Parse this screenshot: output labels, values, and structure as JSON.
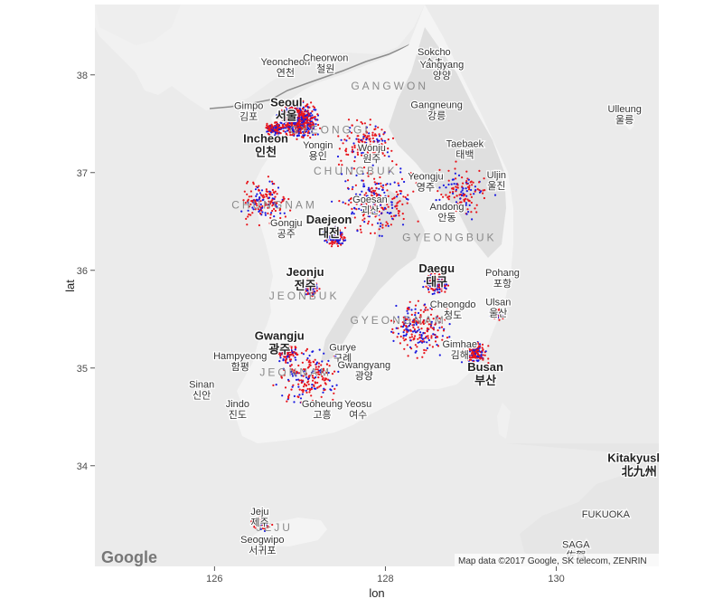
{
  "map": {
    "attribution": "Map data ©2017 Google, SK telecom, ZENRIN",
    "provider_logo": "Google",
    "colors": {
      "panel_bg": "#ebebeb",
      "sea": "#e3e3e3",
      "land": "#f4f4f4",
      "land_dark": "#d7d7d7",
      "point_red": "#e8141b",
      "point_blue": "#1a1adf",
      "border": "#8c8c8c"
    },
    "x_axis": {
      "title": "lon",
      "ticks": [
        {
          "value": 126,
          "label": "126"
        },
        {
          "value": 128,
          "label": "128"
        },
        {
          "value": 130,
          "label": "130"
        }
      ],
      "range": [
        124.6,
        131.2
      ]
    },
    "y_axis": {
      "title": "lat",
      "ticks": [
        {
          "value": 34,
          "label": "34"
        },
        {
          "value": 35,
          "label": "35"
        },
        {
          "value": 36,
          "label": "36"
        },
        {
          "value": 37,
          "label": "37"
        },
        {
          "value": 38,
          "label": "38"
        }
      ],
      "range": [
        32.97,
        38.72
      ]
    },
    "places": [
      {
        "name": "Yeoncheon",
        "local": "연천",
        "lon": 126.83,
        "lat": 38.1
      },
      {
        "name": "Cheorwon",
        "local": "철원",
        "lon": 127.3,
        "lat": 38.14
      },
      {
        "name": "Sokcho",
        "local": "속초",
        "lon": 128.57,
        "lat": 38.2
      },
      {
        "name": "Yangyang",
        "local": "양양",
        "lon": 128.66,
        "lat": 38.07
      },
      {
        "name": "Gimpo",
        "local": "김포",
        "lon": 126.4,
        "lat": 37.65
      },
      {
        "name": "Seoul",
        "local": "서울",
        "lon": 126.84,
        "lat": 37.68,
        "major": true
      },
      {
        "name": "Gangneung",
        "local": "강릉",
        "lon": 128.6,
        "lat": 37.66
      },
      {
        "name": "Ulleung",
        "local": "울릉",
        "lon": 130.8,
        "lat": 37.62
      },
      {
        "name": "Incheon",
        "local": "인천",
        "lon": 126.6,
        "lat": 37.31,
        "major": true
      },
      {
        "name": "Yongin",
        "local": "용인",
        "lon": 127.21,
        "lat": 37.25
      },
      {
        "name": "Wonju",
        "local": "원주",
        "lon": 127.84,
        "lat": 37.22
      },
      {
        "name": "Taebaek",
        "local": "태백",
        "lon": 128.93,
        "lat": 37.26
      },
      {
        "name": "Yeongju",
        "local": "영주",
        "lon": 128.47,
        "lat": 36.93
      },
      {
        "name": "Uljin",
        "local": "울진",
        "lon": 129.3,
        "lat": 36.94
      },
      {
        "name": "Goesan",
        "local": "괴산",
        "lon": 127.82,
        "lat": 36.69
      },
      {
        "name": "Andong",
        "local": "안동",
        "lon": 128.72,
        "lat": 36.62
      },
      {
        "name": "Daejeon",
        "local": "대전",
        "lon": 127.34,
        "lat": 36.48,
        "major": true
      },
      {
        "name": "Gongju",
        "local": "공주",
        "lon": 126.84,
        "lat": 36.45
      },
      {
        "name": "Jeonju",
        "local": "전주",
        "lon": 127.06,
        "lat": 35.94,
        "major": true
      },
      {
        "name": "Daegu",
        "local": "대구",
        "lon": 128.6,
        "lat": 35.98,
        "major": true
      },
      {
        "name": "Pohang",
        "local": "포항",
        "lon": 129.37,
        "lat": 35.94
      },
      {
        "name": "Ulsan",
        "local": "울산",
        "lon": 129.32,
        "lat": 35.64
      },
      {
        "name": "Cheongdo",
        "local": "청도",
        "lon": 128.79,
        "lat": 35.62
      },
      {
        "name": "Gwangju",
        "local": "광주",
        "lon": 126.76,
        "lat": 35.29,
        "major": true
      },
      {
        "name": "Gurye",
        "local": "구례",
        "lon": 127.5,
        "lat": 35.18
      },
      {
        "name": "Gimhae",
        "local": "김해",
        "lon": 128.87,
        "lat": 35.21
      },
      {
        "name": "Hampyeong",
        "local": "함평",
        "lon": 126.3,
        "lat": 35.09
      },
      {
        "name": "Gwangyang",
        "local": "광양",
        "lon": 127.75,
        "lat": 35.0
      },
      {
        "name": "Busan",
        "local": "부산",
        "lon": 129.17,
        "lat": 34.97,
        "major": true
      },
      {
        "name": "Sinan",
        "local": "신안",
        "lon": 125.85,
        "lat": 34.8
      },
      {
        "name": "Jindo",
        "local": "진도",
        "lon": 126.27,
        "lat": 34.6
      },
      {
        "name": "Goheung",
        "local": "고흥",
        "lon": 127.26,
        "lat": 34.6
      },
      {
        "name": "Yeosu",
        "local": "여수",
        "lon": 127.68,
        "lat": 34.6
      },
      {
        "name": "Kitakyushu",
        "local": "北九州",
        "lon": 130.97,
        "lat": 34.04,
        "major": true
      },
      {
        "name": "Jeju",
        "local": "제주",
        "lon": 126.53,
        "lat": 33.5
      },
      {
        "name": "FUKUOKA",
        "local": "",
        "lon": 130.58,
        "lat": 33.47
      },
      {
        "name": "Seogwipo",
        "local": "서귀포",
        "lon": 126.56,
        "lat": 33.21
      },
      {
        "name": "SAGA",
        "local": "佐賀",
        "lon": 130.23,
        "lat": 33.16
      }
    ],
    "regions": [
      {
        "name": "GANGWON",
        "lon": 128.05,
        "lat": 37.85
      },
      {
        "name": "GYEONGGI",
        "lon": 127.35,
        "lat": 37.4
      },
      {
        "name": "CHUNGBUK",
        "lon": 127.65,
        "lat": 36.98
      },
      {
        "name": "CHUNGNAM",
        "lon": 126.7,
        "lat": 36.63
      },
      {
        "name": "GYEONGBUK",
        "lon": 128.75,
        "lat": 36.3
      },
      {
        "name": "JEONBUK",
        "lon": 127.05,
        "lat": 35.7
      },
      {
        "name": "GYEONGNAM",
        "lon": 128.15,
        "lat": 35.45
      },
      {
        "name": "JEONNAM",
        "lon": 126.95,
        "lat": 34.92
      },
      {
        "name": "JEJU",
        "lon": 126.7,
        "lat": 33.33
      }
    ]
  }
}
